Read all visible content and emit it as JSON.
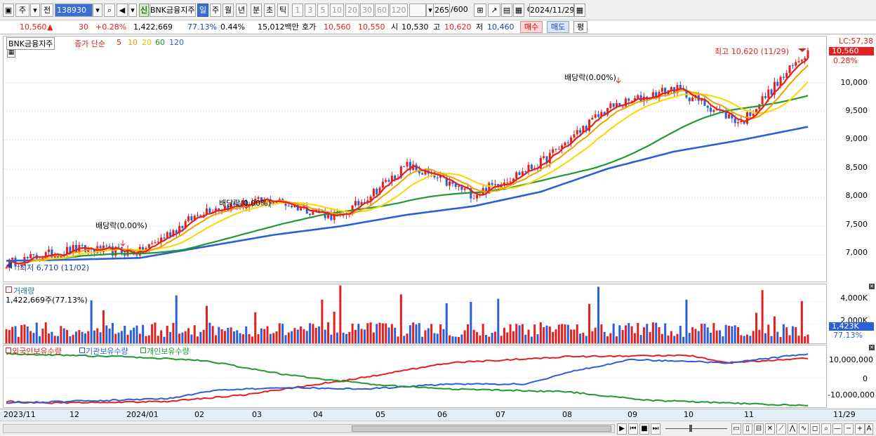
{
  "toolbar": {
    "market": "주",
    "prev": "전",
    "code": "138930",
    "badge": "신",
    "name": "BNK금융지주",
    "periods": [
      "일",
      "주",
      "월",
      "년",
      "분",
      "초",
      "틱"
    ],
    "numbers": [
      "1",
      "3",
      "5",
      "10",
      "20",
      "30",
      "60",
      "120"
    ],
    "count": "265",
    "count_total": "/600",
    "date": "2024/11/29"
  },
  "quote": {
    "price": "10,560",
    "arrow": "▲",
    "change": "30",
    "change_pct": "+0.28%",
    "volume": "1,422,669",
    "vol_ratio": "77.13%",
    "turnover": "0.44%",
    "amount": "15,012백만",
    "hoga_label": "호가",
    "ask": "10,560",
    "bid": "10,550",
    "open_label": "시",
    "open": "10,530",
    "high_label": "고",
    "high": "10,620",
    "low_label": "저",
    "low": "10,460",
    "buy_label": "매수",
    "sell_label": "매도",
    "avg_label": "평"
  },
  "price_panel": {
    "stock_tag": "BNK금융지주",
    "legend_prefix": "종가 단순",
    "ma_labels": [
      "5",
      "10",
      "20",
      "60",
      "120"
    ],
    "ma_colors": [
      "#e41f1f",
      "#f0a000",
      "#ffd400",
      "#1e9a2e",
      "#2b5fd8"
    ],
    "lc_label": "LC:57,38",
    "current_tag": "10,560",
    "current_pct": "0.28%",
    "high_annotation": "최고 10,620 (11/29)",
    "low_annotation": "최저 6,710 (11/02)",
    "dividend_labels": [
      "배당락(0.00%)",
      "배당락(0.00%)",
      "배당락(0.00%)"
    ],
    "y_ticks": [
      "10,000",
      "9,500",
      "9,000",
      "8,500",
      "8,000",
      "7,500",
      "7,000"
    ]
  },
  "volume_panel": {
    "title": "거래량",
    "value": "1,422,669주(77.13%)",
    "y_ticks": [
      "4,000K",
      "2,000K"
    ],
    "current_tag": "1,423K",
    "current_pct": "77.13%"
  },
  "holding_panel": {
    "legend": [
      "외국인보유수량",
      "기관보유수량",
      "개인보유수량"
    ],
    "legend_colors": [
      "#e41f1f",
      "#2b5fd8",
      "#1e9a2e"
    ],
    "y_ticks": [
      "10,000,000",
      "0",
      "-10,000,000"
    ]
  },
  "x_axis": {
    "labels": [
      "2023/11",
      "12",
      "2024/01",
      "02",
      "03",
      "04",
      "05",
      "06",
      "07",
      "08",
      "09",
      "10",
      "11"
    ],
    "last_label": "11/29"
  },
  "chart_data": {
    "type": "line",
    "x": [
      "2023/11",
      "2023/12",
      "2024/01",
      "2024/02",
      "2024/03",
      "2024/04",
      "2024/05",
      "2024/06",
      "2024/07",
      "2024/08",
      "2024/09",
      "2024/10",
      "2024/11"
    ],
    "series": [
      {
        "name": "종가",
        "values": [
          6850,
          7100,
          7050,
          7800,
          7950,
          7650,
          8550,
          8050,
          8600,
          9550,
          9900,
          9300,
          10560
        ]
      },
      {
        "name": "120",
        "values": [
          6900,
          6920,
          6950,
          7150,
          7350,
          7500,
          7700,
          7850,
          8100,
          8500,
          8800,
          9000,
          9230
        ]
      }
    ],
    "ylim": [
      6600,
      10800
    ]
  }
}
